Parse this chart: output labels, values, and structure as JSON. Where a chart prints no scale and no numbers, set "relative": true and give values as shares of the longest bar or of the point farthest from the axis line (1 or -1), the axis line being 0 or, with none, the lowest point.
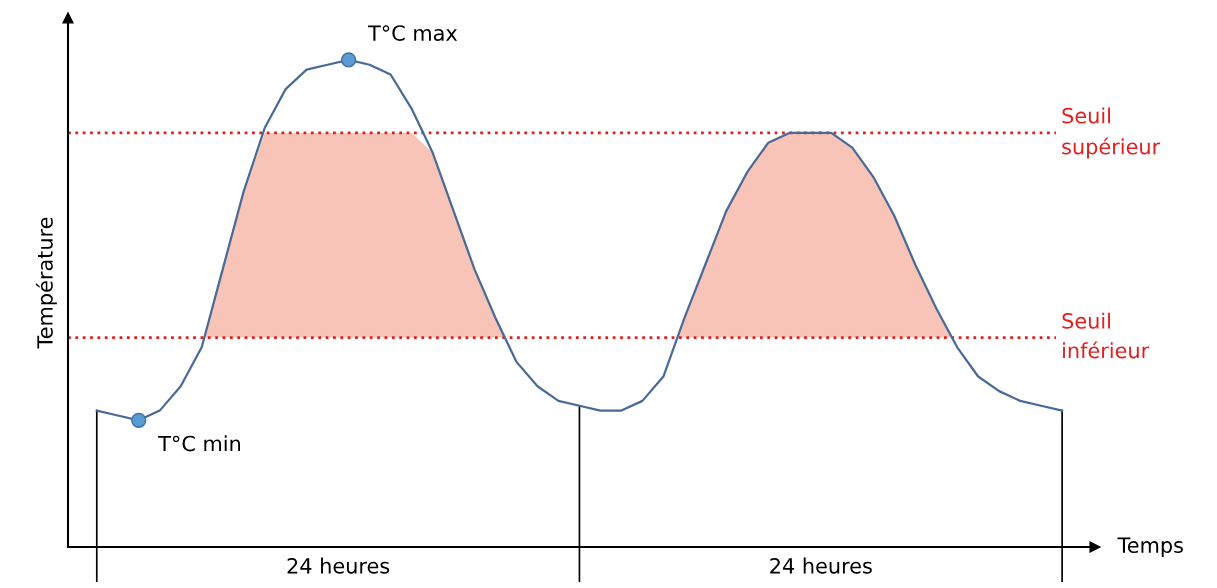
{
  "chart_data": {
    "type": "line",
    "relative": true,
    "xlabel": "Temps",
    "ylabel": "Température",
    "categories": [
      null,
      null,
      null,
      null,
      null,
      null,
      null,
      null,
      null,
      null,
      null,
      null,
      null,
      null,
      null,
      null,
      null,
      null,
      null,
      null,
      null,
      null,
      null,
      null,
      null,
      null,
      null,
      null,
      null,
      null,
      null,
      null,
      null,
      null,
      null,
      null,
      null,
      null,
      null,
      null,
      null,
      null,
      null,
      null,
      null,
      null,
      null
    ],
    "series": [
      {
        "color": "#4a6a96",
        "values": [
          0.28,
          0.27,
          0.26,
          0.28,
          0.33,
          0.41,
          0.57,
          0.73,
          0.86,
          0.94,
          0.98,
          0.99,
          1,
          0.99,
          0.97,
          0.9,
          0.81,
          0.69,
          0.57,
          0.47,
          0.38,
          0.33,
          0.3,
          0.29,
          0.28,
          0.28,
          0.3,
          0.35,
          0.47,
          0.58,
          0.69,
          0.77,
          0.83,
          0.85,
          0.85,
          0.85,
          0.82,
          0.76,
          0.68,
          0.58,
          0.49,
          0.41,
          0.35,
          0.32,
          0.3,
          0.29,
          0.28
        ]
      }
    ],
    "ref_lines": [
      {
        "axis": "y",
        "value": 0.85,
        "label": "Seuil supérieur",
        "color": "#e02020",
        "line_style": "dotted"
      },
      {
        "axis": "y",
        "value": 0.43,
        "label": "Seuil inférieur",
        "color": "#e02020",
        "line_style": "dotted"
      }
    ],
    "annotations": [
      "T°C max",
      "T°C min",
      "24 heures",
      "24 heures"
    ],
    "marker": "none",
    "line_style": "solid"
  }
}
